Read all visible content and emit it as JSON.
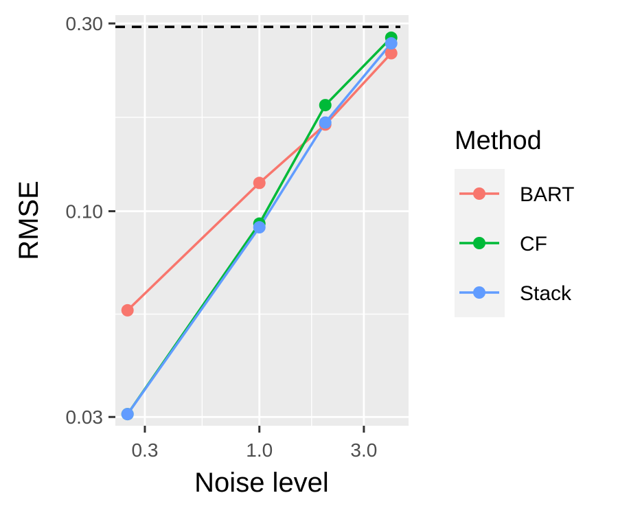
{
  "chart_data": {
    "type": "line",
    "xlabel": "Noise level",
    "ylabel": "RMSE",
    "x_scale": "log10",
    "y_scale": "log10",
    "xlim": [
      0.22,
      4.8
    ],
    "ylim": [
      0.0285,
      0.315
    ],
    "x_ticks": [
      {
        "value": 0.3,
        "label": "0.3"
      },
      {
        "value": 1.0,
        "label": "1.0"
      },
      {
        "value": 3.0,
        "label": "3.0"
      }
    ],
    "y_ticks": [
      {
        "value": 0.03,
        "label": "0.03"
      },
      {
        "value": 0.1,
        "label": "0.10"
      },
      {
        "value": 0.3,
        "label": "0.30"
      }
    ],
    "x": [
      0.25,
      1.0,
      2.0,
      4.0
    ],
    "series": [
      {
        "name": "BART",
        "color": "#F8766D",
        "values": [
          0.056,
          0.118,
          0.166,
          0.252
        ]
      },
      {
        "name": "CF",
        "color": "#00BA38",
        "values": [
          0.0305,
          0.093,
          0.186,
          0.276
        ]
      },
      {
        "name": "Stack",
        "color": "#619CFF",
        "values": [
          0.0305,
          0.091,
          0.168,
          0.267
        ]
      }
    ],
    "reference_line": {
      "y": 0.294,
      "style": "dashed",
      "color": "#000000"
    },
    "grid": true,
    "legend": {
      "title": "Method",
      "position": "right"
    }
  }
}
